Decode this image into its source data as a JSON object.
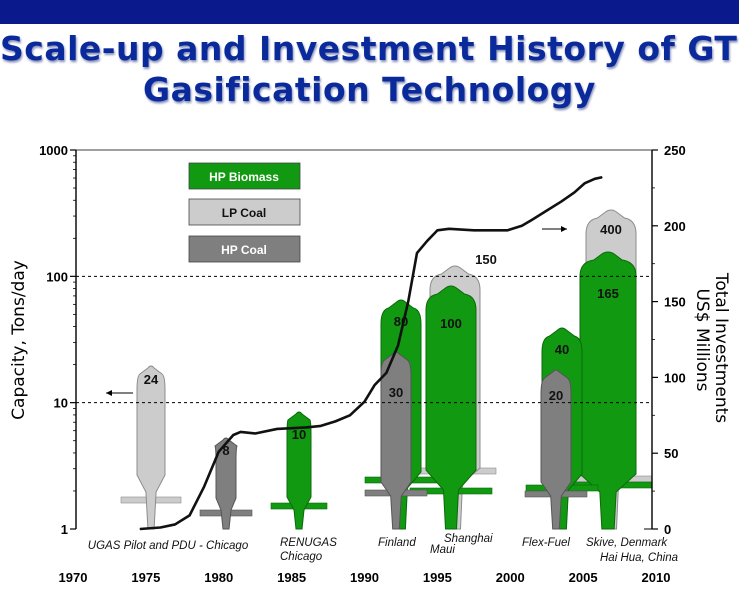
{
  "title": {
    "line1": "Scale-up and  Investment History of GTI",
    "line2": "Gasification Technology"
  },
  "colors": {
    "title": "#0a2a9c",
    "topbar": "#0a1a8c",
    "hp_biomass": "#119911",
    "lp_coal": "#cccccc",
    "hp_coal": "#7f7f7f",
    "investment_line": "#111111"
  },
  "chart_data": {
    "type": "line",
    "title": "",
    "ylabel": "Capacity, Tons/day",
    "y2label_line1": "Total Investments",
    "y2label_line2": "US$ Millions",
    "yscale": "log",
    "ylim": [
      1,
      1000
    ],
    "y_ticks": [
      "1",
      "10",
      "100",
      "1000"
    ],
    "y2lim": [
      0,
      250
    ],
    "y2_ticks": [
      "0",
      "50",
      "100",
      "150",
      "200",
      "250"
    ],
    "xlim": [
      1970,
      2010
    ],
    "x_ticks": [
      "1970",
      "1975",
      "1980",
      "1985",
      "1990",
      "1995",
      "2000",
      "2005",
      "2010"
    ],
    "grid": "dashed horizontal at 10 and 100",
    "legend": {
      "position": "top-left",
      "entries": [
        {
          "label": "HP Biomass",
          "color": "#119911"
        },
        {
          "label": "LP Coal",
          "color": "#cccccc"
        },
        {
          "label": "HP Coal",
          "color": "#7f7f7f"
        }
      ]
    },
    "series": [
      {
        "kind": "investment",
        "x": [
          1974.6,
          1976,
          1977,
          1978,
          1979,
          1980,
          1981,
          1981.5,
          1982.5,
          1984,
          1986,
          1987,
          1988,
          1989,
          1990,
          1990.7,
          1991.5,
          1992.3,
          1993,
          1993.6,
          1994.3,
          1995,
          1995.8,
          1997.5,
          1999.8,
          2000.8,
          2001.5,
          2002.5,
          2003.5,
          2004.4,
          2005.1,
          2005.8,
          2006.3
        ],
        "y": [
          0,
          1,
          3,
          9,
          28,
          51,
          62,
          64,
          63,
          66,
          67,
          68,
          71,
          75,
          84,
          95,
          103,
          121,
          150,
          182,
          190,
          197,
          198,
          197,
          197,
          200,
          204,
          210,
          216,
          222,
          228,
          231,
          232
        ]
      }
    ],
    "units": [
      {
        "label": "24",
        "type": "LP Coal",
        "capacity": 24,
        "year": 1975
      },
      {
        "label": "8",
        "type": "HP Coal",
        "capacity": 8,
        "year": 1980
      },
      {
        "label": "10",
        "type": "HP Biomass",
        "capacity": 10,
        "year": 1985
      },
      {
        "label": "150",
        "type": "LP Coal",
        "capacity": 150,
        "year": 1995
      },
      {
        "label": "80",
        "type": "HP Biomass",
        "capacity": 80,
        "year": 1992
      },
      {
        "label": "100",
        "type": "HP Biomass",
        "capacity": 100,
        "year": 1995
      },
      {
        "label": "30",
        "type": "HP Coal",
        "capacity": 30,
        "year": 1992
      },
      {
        "label": "400",
        "type": "LP Coal",
        "capacity": 400,
        "year": 2006
      },
      {
        "label": "165",
        "type": "HP Biomass",
        "capacity": 165,
        "year": 2005
      },
      {
        "label": "40",
        "type": "HP Biomass",
        "capacity": 40,
        "year": 2003
      },
      {
        "label": "20",
        "type": "HP Coal",
        "capacity": 20,
        "year": 2003
      }
    ],
    "annotations": [
      {
        "text": "UGAS Pilot and PDU - Chicago"
      },
      {
        "text": "RENUGAS"
      },
      {
        "text": "Chicago"
      },
      {
        "text": "Finland"
      },
      {
        "text": "Shanghai"
      },
      {
        "text": "Maui"
      },
      {
        "text": "Flex-Fuel"
      },
      {
        "text": "Skive, Denmark"
      },
      {
        "text": "Hai Hua, China"
      }
    ]
  }
}
